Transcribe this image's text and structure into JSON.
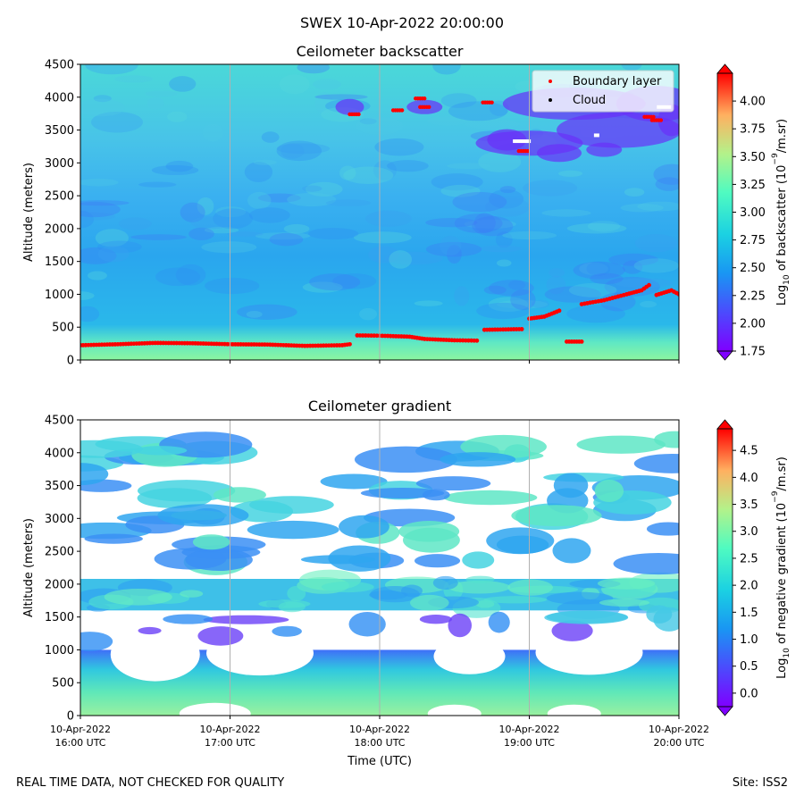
{
  "suptitle": "SWEX 10-Apr-2022 20:00:00",
  "footer_left": "REAL TIME DATA, NOT CHECKED FOR QUALITY",
  "footer_right": "Site: ISS2",
  "x_ticks": [
    "10-Apr-2022|16:00 UTC",
    "10-Apr-2022|17:00 UTC",
    "10-Apr-2022|18:00 UTC",
    "10-Apr-2022|19:00 UTC",
    "10-Apr-2022|20:00 UTC"
  ],
  "x_tick_hours": [
    16,
    17,
    18,
    19,
    20
  ],
  "xlabel": "Time (UTC)",
  "colors": {
    "boundary_layer": "#ff0000",
    "cloud": "#000000",
    "background_fill": "#3ea8f0",
    "gradient_fill": "#46d8de",
    "grid": "#b0b0b0"
  },
  "chart_data": [
    {
      "type": "heatmap",
      "title": "Ceilometer backscatter",
      "ylabel": "Altitude (meters)",
      "y_ticks": [
        0,
        500,
        1000,
        1500,
        2000,
        2500,
        3000,
        3500,
        4000,
        4500
      ],
      "ylim": [
        0,
        4500
      ],
      "xlim": [
        16,
        20
      ],
      "colorbar": {
        "label": "Log10 of backscatter (10^-9/m.sr)",
        "label_main": "Log",
        "label_sub": "10",
        "label_rest": " of backscatter (10",
        "label_sup": "−9",
        "label_end": "/m.sr)",
        "ticks": [
          "1.75",
          "2.00",
          "2.25",
          "2.50",
          "2.75",
          "3.00",
          "3.25",
          "3.50",
          "3.75",
          "4.00"
        ],
        "range": [
          1.75,
          4.25
        ]
      },
      "legend": {
        "position": "top-right",
        "entries": [
          "Boundary layer",
          "Cloud"
        ]
      },
      "boundary_layer": [
        [
          16.0,
          225
        ],
        [
          16.25,
          240
        ],
        [
          16.5,
          260
        ],
        [
          16.75,
          255
        ],
        [
          17.0,
          240
        ],
        [
          17.25,
          235
        ],
        [
          17.5,
          215
        ],
        [
          17.75,
          225
        ],
        [
          17.8,
          240
        ],
        [
          17.85,
          375
        ],
        [
          18.0,
          370
        ],
        [
          18.2,
          355
        ],
        [
          18.3,
          320
        ],
        [
          18.5,
          300
        ],
        [
          18.65,
          295
        ],
        [
          18.7,
          460
        ],
        [
          18.95,
          470
        ],
        [
          19.0,
          630
        ],
        [
          19.1,
          660
        ],
        [
          19.2,
          750
        ],
        [
          19.25,
          280
        ],
        [
          19.35,
          280
        ],
        [
          19.35,
          850
        ],
        [
          19.5,
          910
        ],
        [
          19.65,
          1000
        ],
        [
          19.75,
          1060
        ],
        [
          19.8,
          1140
        ],
        [
          19.85,
          990
        ],
        [
          19.95,
          1060
        ],
        [
          20.0,
          1000
        ]
      ],
      "upper_detections": [
        [
          17.83,
          3740
        ],
        [
          18.12,
          3800
        ],
        [
          18.27,
          3980
        ],
        [
          18.3,
          3850
        ],
        [
          18.72,
          3920
        ],
        [
          18.96,
          3180
        ],
        [
          19.8,
          3700
        ],
        [
          19.85,
          3650
        ]
      ]
    },
    {
      "type": "heatmap",
      "title": "Ceilometer gradient",
      "ylabel": "Altitude (meters)",
      "y_ticks": [
        0,
        500,
        1000,
        1500,
        2000,
        2500,
        3000,
        3500,
        4000,
        4500
      ],
      "ylim": [
        0,
        4500
      ],
      "xlim": [
        16,
        20
      ],
      "colorbar": {
        "label": "Log10 of negative gradient (10^-9/m.sr)",
        "label_main": "Log",
        "label_sub": "10",
        "label_rest": " of negative gradient (10",
        "label_sup": "−9",
        "label_end": "/m.sr)",
        "ticks": [
          "0.0",
          "0.5",
          "1.0",
          "1.5",
          "2.0",
          "2.5",
          "3.0",
          "3.5",
          "4.0",
          "4.5"
        ],
        "range": [
          -0.25,
          4.9
        ]
      },
      "layers": [
        {
          "name": "surface",
          "from": 0,
          "to": 1000
        },
        {
          "name": "mid",
          "from": 1600,
          "to": 2100
        },
        {
          "name": "upper",
          "from": 2500,
          "to": 4300
        }
      ]
    }
  ]
}
